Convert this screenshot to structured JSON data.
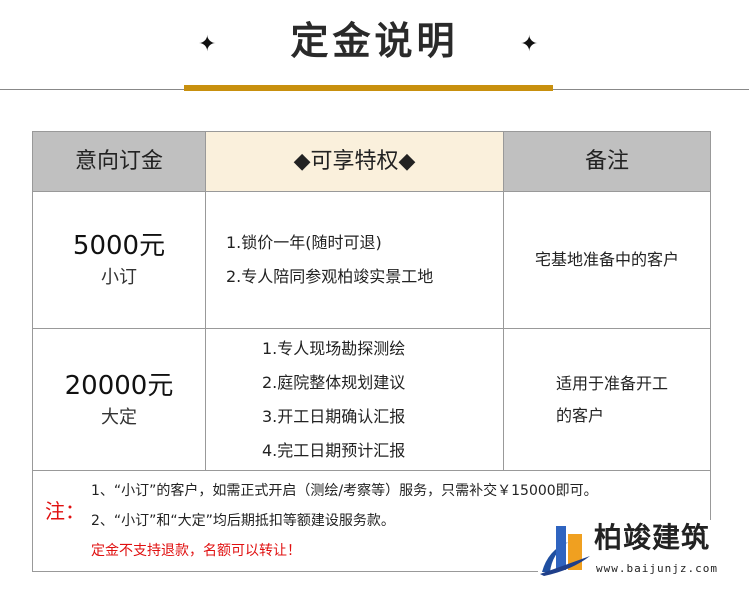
{
  "title": "定金说明",
  "ornament_icon": "fleur-diamond",
  "accent_color": "#c8900e",
  "table": {
    "headers": [
      "意向订金",
      "◆可享特权◆",
      "备注"
    ],
    "rows": [
      {
        "amount": "5000元",
        "type": "小订",
        "privileges": [
          "1.锁价一年(随时可退)",
          "2.专人陪同参观柏竣实景工地"
        ],
        "note_lines": [
          "宅基地准备中的客户"
        ]
      },
      {
        "amount": "20000元",
        "type": "大定",
        "privileges": [
          "1.专人现场勘探测绘",
          "2.庭院整体规划建议",
          "3.开工日期确认汇报",
          "4.完工日期预计汇报"
        ],
        "note_lines": [
          "适用于准备开工",
          "的客户"
        ]
      }
    ]
  },
  "notes": {
    "label": "注：",
    "lines": [
      "1、“小订”的客户，如需正式开启（测绘/考察等）服务，只需补交￥15000即可。",
      "2、“小订”和“大定”均后期抵扣等额建设服务款。"
    ],
    "warning": "定金不支持退款，名额可以转让！",
    "warning_color": "#e01010"
  },
  "logo": {
    "name": "柏竣建筑",
    "url": "www.baijunjz.com"
  }
}
